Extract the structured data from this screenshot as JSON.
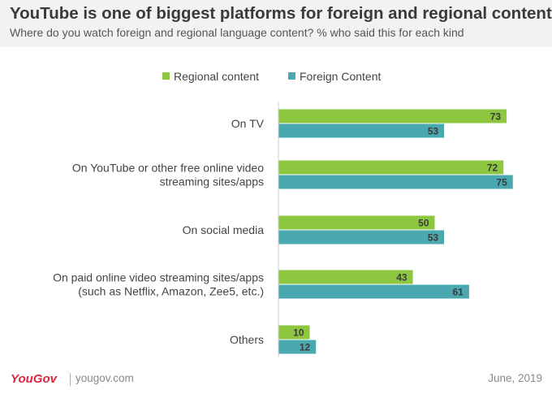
{
  "header": {
    "title": "YouTube is one of biggest platforms for foreign and regional content",
    "subtitle": "Where do you watch foreign and regional language content? % who said this for each kind"
  },
  "footer": {
    "logo": "YouGov",
    "site": "yougov.com",
    "date": "June, 2019"
  },
  "chart_data": {
    "type": "bar",
    "orientation": "horizontal",
    "title": "YouTube is one of biggest platforms for foreign and regional content",
    "subtitle": "Where do you watch foreign and regional language content? % who said this for each kind",
    "xlabel": "",
    "ylabel": "",
    "xlim": [
      0,
      100
    ],
    "grid": false,
    "legend_position": "top",
    "categories": [
      [
        "On TV"
      ],
      [
        "On YouTube or other free online video",
        "streaming sites/apps"
      ],
      [
        "On social media"
      ],
      [
        "On paid online video streaming sites/apps",
        "(such as Netflix, Amazon, Zee5, etc.)"
      ],
      [
        "Others"
      ]
    ],
    "series": [
      {
        "name": "Regional content",
        "color": "#8dc63f",
        "values": [
          73,
          72,
          50,
          43,
          10
        ]
      },
      {
        "name": "Foreign Content",
        "color": "#4aa9b0",
        "values": [
          53,
          75,
          53,
          61,
          12
        ]
      }
    ]
  }
}
